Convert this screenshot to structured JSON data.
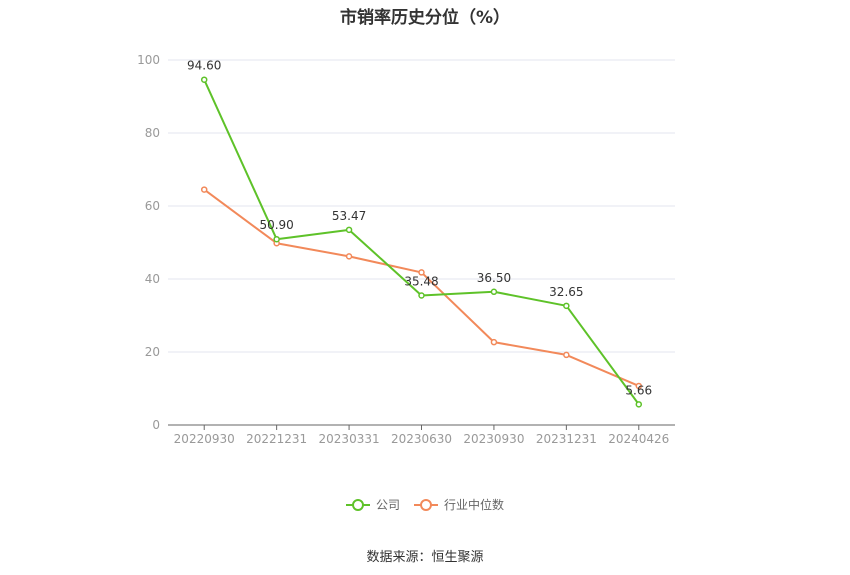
{
  "title": "市销率历史分位（%）",
  "source": "数据来源：恒生聚源",
  "chart_data": {
    "type": "line",
    "categories": [
      "20220930",
      "20221231",
      "20230331",
      "20230630",
      "20230930",
      "20231231",
      "20240426"
    ],
    "ylim": [
      0,
      100
    ],
    "yticks": [
      "0",
      "20",
      "40",
      "60",
      "80",
      "100"
    ],
    "grid": true,
    "legend_position": "bottom",
    "series": [
      {
        "name": "公司",
        "color": "#5ec229",
        "values": [
          94.6,
          50.9,
          53.47,
          35.48,
          36.5,
          32.65,
          5.66
        ],
        "labels": [
          "94.60",
          "50.90",
          "53.47",
          "35.48",
          "36.50",
          "32.65",
          "5.66"
        ]
      },
      {
        "name": "行业中位数",
        "color": "#f2895a",
        "values": [
          64.5,
          49.8,
          46.2,
          41.8,
          22.7,
          19.2,
          10.7
        ]
      }
    ]
  }
}
